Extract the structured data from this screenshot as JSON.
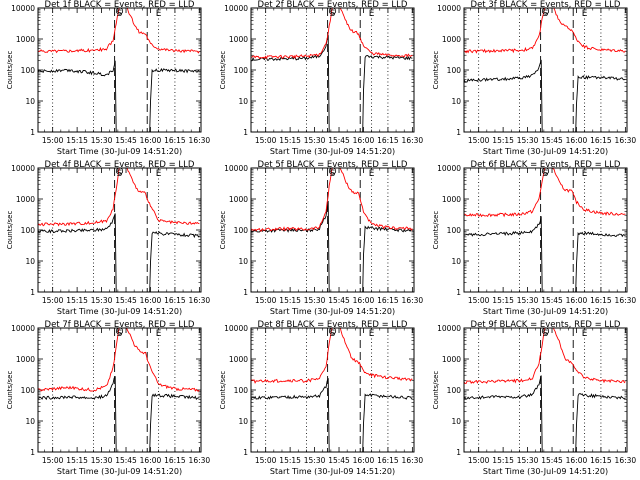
{
  "colors": {
    "events": "#000000",
    "lld": "#ff0000",
    "axes": "#000000",
    "background": "#ffffff"
  },
  "chart_data": [
    {
      "type": "line",
      "title": "Det 1f BLACK = Events, RED = LLD",
      "xlabel": "Start Time (30-Jul-09 14:51:20)",
      "ylabel": "Counts/sec",
      "yscale": "log",
      "ylim": [
        1,
        10000
      ],
      "xlim": [
        "14:51",
        "16:31"
      ],
      "grid": false,
      "x_ticks": [
        "15:00",
        "15:15",
        "15:30",
        "15:45",
        "16:00",
        "16:15",
        "16:30"
      ],
      "y_ticks": [
        "1",
        "10",
        "100",
        "1000",
        "10000"
      ],
      "markers": [
        "S",
        "E"
      ],
      "series": [
        {
          "name": "Events",
          "color": "#000000",
          "x": [
            "14:51",
            "15:10",
            "15:25",
            "15:33",
            "15:37",
            "15:39",
            "15:40",
            "15:41",
            "15:55",
            "15:59",
            "16:00",
            "16:01",
            "16:20",
            "16:30"
          ],
          "y": [
            90,
            100,
            80,
            70,
            100,
            300,
            0,
            0,
            0,
            0,
            10,
            100,
            95,
            90
          ]
        },
        {
          "name": "LLD",
          "color": "#ff0000",
          "x": [
            "14:51",
            "15:10",
            "15:25",
            "15:33",
            "15:37",
            "15:39",
            "15:41",
            "15:45",
            "15:50",
            "15:53",
            "15:57",
            "16:00",
            "16:05",
            "16:15",
            "16:30"
          ],
          "y": [
            400,
            420,
            430,
            480,
            900,
            3000,
            12000,
            12000,
            3000,
            1700,
            1500,
            700,
            500,
            420,
            400
          ]
        }
      ]
    },
    {
      "type": "line",
      "title": "Det 2f BLACK = Events, RED = LLD",
      "xlabel": "Start Time (30-Jul-09 14:51:20)",
      "ylabel": "Counts/sec",
      "yscale": "log",
      "ylim": [
        1,
        10000
      ],
      "xlim": [
        "14:51",
        "16:31"
      ],
      "grid": false,
      "x_ticks": [
        "15:00",
        "15:15",
        "15:30",
        "15:45",
        "16:00",
        "16:15",
        "16:30"
      ],
      "y_ticks": [
        "1",
        "10",
        "100",
        "1000",
        "10000"
      ],
      "markers": [
        "S",
        "E"
      ],
      "series": [
        {
          "name": "Events",
          "color": "#000000",
          "x": [
            "14:51",
            "15:10",
            "15:25",
            "15:33",
            "15:37",
            "15:39",
            "15:40",
            "15:41",
            "15:55",
            "15:59",
            "16:00",
            "16:01",
            "16:20",
            "16:30"
          ],
          "y": [
            220,
            230,
            240,
            280,
            600,
            2000,
            0,
            0,
            0,
            0,
            20,
            280,
            250,
            240
          ]
        },
        {
          "name": "LLD",
          "color": "#ff0000",
          "x": [
            "14:51",
            "15:10",
            "15:25",
            "15:33",
            "15:37",
            "15:39",
            "15:41",
            "15:45",
            "15:50",
            "15:53",
            "15:57",
            "16:00",
            "16:05",
            "16:15",
            "16:30"
          ],
          "y": [
            260,
            270,
            280,
            320,
            700,
            2500,
            12000,
            12000,
            3000,
            1800,
            1500,
            600,
            350,
            300,
            290
          ]
        }
      ]
    },
    {
      "type": "line",
      "title": "Det 3f BLACK = Events, RED = LLD",
      "xlabel": "Start Time (30-Jul-09 14:51:20)",
      "ylabel": "Counts/sec",
      "yscale": "log",
      "ylim": [
        1,
        10000
      ],
      "xlim": [
        "14:51",
        "16:31"
      ],
      "grid": false,
      "x_ticks": [
        "15:00",
        "15:15",
        "15:30",
        "15:45",
        "16:00",
        "16:15",
        "16:30"
      ],
      "y_ticks": [
        "1",
        "10",
        "100",
        "1000",
        "10000"
      ],
      "markers": [
        "S",
        "E"
      ],
      "series": [
        {
          "name": "Events",
          "color": "#000000",
          "x": [
            "14:51",
            "15:10",
            "15:25",
            "15:33",
            "15:37",
            "15:39",
            "15:40",
            "15:41",
            "15:55",
            "15:59",
            "16:00",
            "16:01",
            "16:20",
            "16:30"
          ],
          "y": [
            45,
            50,
            55,
            65,
            120,
            250,
            0,
            0,
            0,
            0,
            8,
            60,
            55,
            50
          ]
        },
        {
          "name": "LLD",
          "color": "#ff0000",
          "x": [
            "14:51",
            "15:10",
            "15:25",
            "15:33",
            "15:37",
            "15:39",
            "15:41",
            "15:45",
            "15:50",
            "15:53",
            "15:57",
            "16:00",
            "16:05",
            "16:15",
            "16:30"
          ],
          "y": [
            400,
            420,
            430,
            500,
            1200,
            5000,
            12000,
            12000,
            3500,
            2500,
            2000,
            1000,
            550,
            450,
            420
          ]
        }
      ]
    },
    {
      "type": "line",
      "title": "Det 4f BLACK = Events, RED = LLD",
      "xlabel": "Start Time (30-Jul-09 14:51:20)",
      "ylabel": "Counts/sec",
      "yscale": "log",
      "ylim": [
        1,
        10000
      ],
      "xlim": [
        "14:51",
        "16:31"
      ],
      "grid": false,
      "x_ticks": [
        "15:00",
        "15:15",
        "15:30",
        "15:45",
        "16:00",
        "16:15",
        "16:30"
      ],
      "y_ticks": [
        "1",
        "10",
        "100",
        "1000",
        "10000"
      ],
      "markers": [
        "S",
        "E"
      ],
      "series": [
        {
          "name": "Events",
          "color": "#000000",
          "x": [
            "14:51",
            "15:10",
            "15:25",
            "15:33",
            "15:37",
            "15:39",
            "15:40",
            "15:41",
            "15:55",
            "15:59",
            "16:00",
            "16:01",
            "16:20",
            "16:30"
          ],
          "y": [
            90,
            95,
            100,
            110,
            200,
            500,
            0,
            0,
            0,
            0,
            10,
            80,
            70,
            65
          ]
        },
        {
          "name": "LLD",
          "color": "#ff0000",
          "x": [
            "14:51",
            "15:10",
            "15:25",
            "15:33",
            "15:37",
            "15:39",
            "15:41",
            "15:45",
            "15:50",
            "15:53",
            "15:57",
            "16:00",
            "16:05",
            "16:15",
            "16:30"
          ],
          "y": [
            150,
            160,
            170,
            200,
            500,
            2000,
            12000,
            12000,
            3000,
            1700,
            1500,
            600,
            200,
            170,
            160
          ]
        }
      ]
    },
    {
      "type": "line",
      "title": "Det 5f BLACK = Events, RED = LLD",
      "xlabel": "Start Time (30-Jul-09 14:51:20)",
      "ylabel": "Counts/sec",
      "yscale": "log",
      "ylim": [
        1,
        10000
      ],
      "xlim": [
        "14:51",
        "16:31"
      ],
      "grid": false,
      "x_ticks": [
        "15:00",
        "15:15",
        "15:30",
        "15:45",
        "16:00",
        "16:15",
        "16:30"
      ],
      "y_ticks": [
        "1",
        "10",
        "100",
        "1000",
        "10000"
      ],
      "markers": [
        "S",
        "E"
      ],
      "series": [
        {
          "name": "Events",
          "color": "#000000",
          "x": [
            "14:51",
            "15:10",
            "15:25",
            "15:33",
            "15:37",
            "15:39",
            "15:40",
            "15:41",
            "15:55",
            "15:59",
            "16:00",
            "16:01",
            "16:20",
            "16:30"
          ],
          "y": [
            90,
            100,
            95,
            110,
            300,
            1500,
            0,
            0,
            0,
            0,
            15,
            120,
            100,
            95
          ]
        },
        {
          "name": "LLD",
          "color": "#ff0000",
          "x": [
            "14:51",
            "15:10",
            "15:25",
            "15:33",
            "15:37",
            "15:39",
            "15:41",
            "15:45",
            "15:50",
            "15:53",
            "15:57",
            "16:00",
            "16:05",
            "16:15",
            "16:30"
          ],
          "y": [
            100,
            110,
            105,
            120,
            400,
            2500,
            12000,
            12000,
            3000,
            1700,
            1500,
            400,
            150,
            120,
            110
          ]
        }
      ]
    },
    {
      "type": "line",
      "title": "Det 6f BLACK = Events, RED = LLD",
      "xlabel": "Start Time (30-Jul-09 14:51:20)",
      "ylabel": "Counts/sec",
      "yscale": "log",
      "ylim": [
        1,
        10000
      ],
      "xlim": [
        "14:51",
        "16:31"
      ],
      "grid": false,
      "x_ticks": [
        "15:00",
        "15:15",
        "15:30",
        "15:45",
        "16:00",
        "16:15",
        "16:30"
      ],
      "y_ticks": [
        "1",
        "10",
        "100",
        "1000",
        "10000"
      ],
      "markers": [
        "S",
        "E"
      ],
      "series": [
        {
          "name": "Events",
          "color": "#000000",
          "x": [
            "14:51",
            "15:10",
            "15:25",
            "15:33",
            "15:37",
            "15:39",
            "15:40",
            "15:41",
            "15:55",
            "15:59",
            "16:00",
            "16:01",
            "16:20",
            "16:30"
          ],
          "y": [
            70,
            75,
            80,
            90,
            150,
            350,
            0,
            0,
            0,
            0,
            8,
            80,
            70,
            65
          ]
        },
        {
          "name": "LLD",
          "color": "#ff0000",
          "x": [
            "14:51",
            "15:10",
            "15:25",
            "15:33",
            "15:37",
            "15:39",
            "15:41",
            "15:45",
            "15:50",
            "15:53",
            "15:57",
            "16:00",
            "16:05",
            "16:15",
            "16:30"
          ],
          "y": [
            300,
            310,
            320,
            400,
            1000,
            4000,
            12000,
            12000,
            3000,
            2000,
            1800,
            800,
            450,
            350,
            320
          ]
        }
      ]
    },
    {
      "type": "line",
      "title": "Det 7f BLACK = Events, RED = LLD",
      "xlabel": "Start Time (30-Jul-09 14:51:20)",
      "ylabel": "Counts/sec",
      "yscale": "log",
      "ylim": [
        1,
        10000
      ],
      "xlim": [
        "14:51",
        "16:31"
      ],
      "grid": false,
      "x_ticks": [
        "15:00",
        "15:15",
        "15:30",
        "15:45",
        "16:00",
        "16:15",
        "16:30"
      ],
      "y_ticks": [
        "1",
        "10",
        "100",
        "1000",
        "10000"
      ],
      "markers": [
        "S",
        "E"
      ],
      "series": [
        {
          "name": "Events",
          "color": "#000000",
          "x": [
            "14:51",
            "15:10",
            "15:25",
            "15:33",
            "15:37",
            "15:39",
            "15:40",
            "15:41",
            "15:55",
            "15:59",
            "16:00",
            "16:01",
            "16:20",
            "16:30"
          ],
          "y": [
            55,
            60,
            55,
            65,
            150,
            450,
            0,
            0,
            0,
            0,
            8,
            70,
            60,
            55
          ]
        },
        {
          "name": "LLD",
          "color": "#ff0000",
          "x": [
            "14:51",
            "15:10",
            "15:25",
            "15:33",
            "15:37",
            "15:39",
            "15:41",
            "15:45",
            "15:50",
            "15:53",
            "15:57",
            "16:00",
            "16:05",
            "16:15",
            "16:30"
          ],
          "y": [
            100,
            120,
            100,
            130,
            500,
            2500,
            12000,
            12000,
            3000,
            1800,
            1500,
            500,
            150,
            110,
            100
          ]
        }
      ]
    },
    {
      "type": "line",
      "title": "Det 8f BLACK = Events, RED = LLD",
      "xlabel": "Start Time (30-Jul-09 14:51:20)",
      "ylabel": "Counts/sec",
      "yscale": "log",
      "ylim": [
        1,
        10000
      ],
      "xlim": [
        "14:51",
        "16:31"
      ],
      "grid": false,
      "x_ticks": [
        "15:00",
        "15:15",
        "15:30",
        "15:45",
        "16:00",
        "16:15",
        "16:30"
      ],
      "y_ticks": [
        "1",
        "10",
        "100",
        "1000",
        "10000"
      ],
      "markers": [
        "S",
        "E"
      ],
      "series": [
        {
          "name": "Events",
          "color": "#000000",
          "x": [
            "14:51",
            "15:10",
            "15:25",
            "15:33",
            "15:37",
            "15:39",
            "15:40",
            "15:41",
            "15:55",
            "15:59",
            "16:00",
            "16:01",
            "16:20",
            "16:30"
          ],
          "y": [
            55,
            60,
            60,
            65,
            130,
            350,
            0,
            0,
            0,
            0,
            8,
            70,
            60,
            55
          ]
        },
        {
          "name": "LLD",
          "color": "#ff0000",
          "x": [
            "14:51",
            "15:10",
            "15:25",
            "15:33",
            "15:37",
            "15:39",
            "15:41",
            "15:45",
            "15:50",
            "15:53",
            "15:57",
            "16:00",
            "16:05",
            "16:15",
            "16:30"
          ],
          "y": [
            190,
            200,
            200,
            230,
            600,
            3000,
            12000,
            12000,
            2500,
            1000,
            800,
            400,
            300,
            250,
            220
          ]
        }
      ]
    },
    {
      "type": "line",
      "title": "Det 9f BLACK = Events, RED = LLD",
      "xlabel": "Start Time (30-Jul-09 14:51:20)",
      "ylabel": "Counts/sec",
      "yscale": "log",
      "ylim": [
        1,
        10000
      ],
      "xlim": [
        "14:51",
        "16:31"
      ],
      "grid": false,
      "x_ticks": [
        "15:00",
        "15:15",
        "15:30",
        "15:45",
        "16:00",
        "16:15",
        "16:30"
      ],
      "y_ticks": [
        "1",
        "10",
        "100",
        "1000",
        "10000"
      ],
      "markers": [
        "S",
        "E"
      ],
      "series": [
        {
          "name": "Events",
          "color": "#000000",
          "x": [
            "14:51",
            "15:10",
            "15:25",
            "15:33",
            "15:37",
            "15:39",
            "15:40",
            "15:41",
            "15:55",
            "15:59",
            "16:00",
            "16:01",
            "16:20",
            "16:30"
          ],
          "y": [
            55,
            60,
            60,
            70,
            150,
            400,
            0,
            0,
            0,
            0,
            8,
            70,
            60,
            55
          ]
        },
        {
          "name": "LLD",
          "color": "#ff0000",
          "x": [
            "14:51",
            "15:10",
            "15:25",
            "15:33",
            "15:37",
            "15:39",
            "15:41",
            "15:45",
            "15:50",
            "15:53",
            "15:57",
            "16:00",
            "16:05",
            "16:15",
            "16:30"
          ],
          "y": [
            180,
            190,
            200,
            240,
            700,
            3000,
            12000,
            12000,
            3000,
            1000,
            800,
            400,
            250,
            200,
            190
          ]
        }
      ]
    }
  ]
}
